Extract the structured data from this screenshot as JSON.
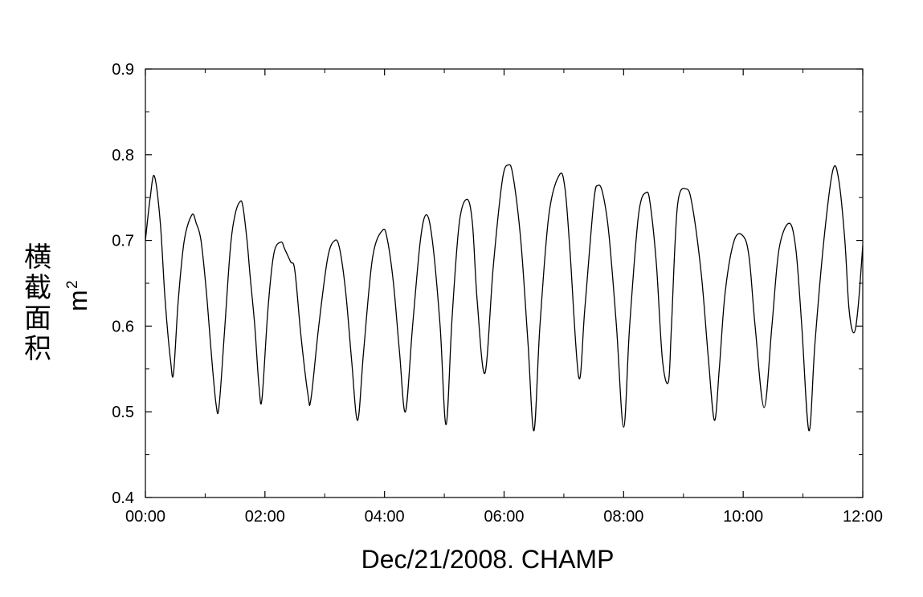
{
  "chart_data": {
    "type": "line",
    "title": "",
    "xlabel": "Dec/21/2008. CHAMP",
    "ylabel": "横截面积",
    "yunit_base": "m",
    "yunit_sup": "2",
    "xlim": [
      0,
      12
    ],
    "ylim": [
      0.4,
      0.9
    ],
    "grid": false,
    "x_ticks": [
      0,
      2,
      4,
      6,
      8,
      10,
      12
    ],
    "x_tick_labels": [
      "00:00",
      "02:00",
      "04:00",
      "06:00",
      "08:00",
      "10:00",
      "12:00"
    ],
    "y_ticks": [
      0.4,
      0.5,
      0.6,
      0.7,
      0.8,
      0.9
    ],
    "y_tick_labels": [
      "0.4",
      "0.5",
      "0.6",
      "0.7",
      "0.8",
      "0.9"
    ],
    "series": [
      {
        "color": "#000000",
        "x": [
          0.0,
          0.08,
          0.15,
          0.25,
          0.33,
          0.42,
          0.47,
          0.55,
          0.65,
          0.78,
          0.85,
          0.93,
          1.02,
          1.1,
          1.18,
          1.23,
          1.32,
          1.42,
          1.5,
          1.58,
          1.63,
          1.7,
          1.75,
          1.83,
          1.9,
          1.95,
          2.05,
          2.15,
          2.27,
          2.33,
          2.43,
          2.5,
          2.6,
          2.72,
          2.77,
          2.9,
          3.05,
          3.17,
          3.25,
          3.35,
          3.45,
          3.55,
          3.65,
          3.8,
          3.97,
          4.05,
          4.15,
          4.25,
          4.35,
          4.47,
          4.6,
          4.7,
          4.8,
          4.93,
          5.03,
          5.13,
          5.25,
          5.38,
          5.47,
          5.55,
          5.68,
          5.82,
          5.97,
          6.07,
          6.15,
          6.28,
          6.4,
          6.5,
          6.6,
          6.75,
          6.93,
          7.02,
          7.1,
          7.25,
          7.35,
          7.5,
          7.57,
          7.65,
          7.75,
          7.88,
          8.0,
          8.1,
          8.25,
          8.38,
          8.45,
          8.55,
          8.65,
          8.75,
          8.8,
          8.9,
          9.05,
          9.15,
          9.3,
          9.42,
          9.52,
          9.6,
          9.7,
          9.85,
          10.0,
          10.1,
          10.2,
          10.35,
          10.48,
          10.6,
          10.77,
          10.88,
          10.98,
          11.1,
          11.2,
          11.35,
          11.5,
          11.6,
          11.7,
          11.77,
          11.85,
          11.92,
          12.0
        ],
        "y": [
          0.7,
          0.75,
          0.775,
          0.72,
          0.63,
          0.56,
          0.545,
          0.63,
          0.7,
          0.73,
          0.72,
          0.7,
          0.64,
          0.57,
          0.51,
          0.505,
          0.59,
          0.69,
          0.73,
          0.745,
          0.74,
          0.7,
          0.66,
          0.6,
          0.53,
          0.515,
          0.62,
          0.685,
          0.698,
          0.69,
          0.675,
          0.665,
          0.59,
          0.52,
          0.515,
          0.6,
          0.68,
          0.7,
          0.69,
          0.64,
          0.56,
          0.49,
          0.57,
          0.68,
          0.712,
          0.7,
          0.65,
          0.57,
          0.5,
          0.6,
          0.7,
          0.73,
          0.7,
          0.6,
          0.485,
          0.61,
          0.72,
          0.748,
          0.72,
          0.63,
          0.545,
          0.67,
          0.77,
          0.788,
          0.775,
          0.7,
          0.58,
          0.478,
          0.6,
          0.73,
          0.777,
          0.76,
          0.69,
          0.54,
          0.62,
          0.745,
          0.764,
          0.755,
          0.71,
          0.6,
          0.482,
          0.6,
          0.73,
          0.756,
          0.74,
          0.67,
          0.56,
          0.535,
          0.6,
          0.74,
          0.76,
          0.74,
          0.66,
          0.56,
          0.49,
          0.55,
          0.64,
          0.7,
          0.705,
          0.68,
          0.6,
          0.505,
          0.6,
          0.69,
          0.72,
          0.69,
          0.6,
          0.478,
          0.58,
          0.7,
          0.782,
          0.77,
          0.7,
          0.62,
          0.592,
          0.62,
          0.694
        ]
      }
    ]
  }
}
